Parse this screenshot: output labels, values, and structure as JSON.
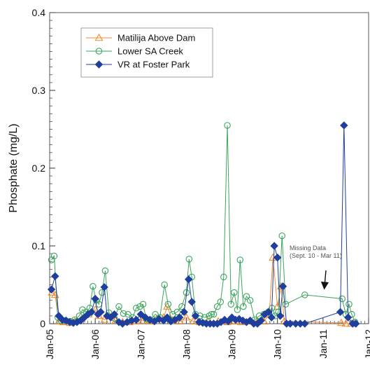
{
  "chart_data": {
    "type": "line",
    "title": "",
    "xlabel": "",
    "ylabel": "Phosphate (mg/L)",
    "ylim": [
      0,
      0.4
    ],
    "y_ticks": [
      "0",
      "0.1",
      "0.2",
      "0.3",
      "0.4"
    ],
    "x_range": [
      2005.0,
      2012.0
    ],
    "x_ticks": [
      "Jan-05",
      "Jan-06",
      "Jan-07",
      "Jan-08",
      "Jan-09",
      "Jan-10",
      "Jan-11",
      "Jan-12"
    ],
    "grid": false,
    "legend_position": "top-left",
    "annotation": {
      "lines": [
        "Missing Data",
        "(Sept. 10 - Mar 11)"
      ],
      "arrow_to": [
        2011.02,
        0.045
      ]
    },
    "series": [
      {
        "name": "Matilija Above Dam",
        "color": "#f28a30",
        "marker": "triangle",
        "points": [
          [
            2005.05,
            0.04
          ],
          [
            2005.12,
            0.037
          ],
          [
            2005.2,
            0.003
          ],
          [
            2005.3,
            0.002
          ],
          [
            2005.45,
            0.001
          ],
          [
            2005.55,
            0.003
          ],
          [
            2005.7,
            0.006
          ],
          [
            2005.85,
            0.012
          ],
          [
            2006.0,
            0.018
          ],
          [
            2006.08,
            0.01
          ],
          [
            2006.2,
            0.005
          ],
          [
            2006.3,
            0.01
          ],
          [
            2006.45,
            0.004
          ],
          [
            2006.6,
            0.002
          ],
          [
            2006.75,
            0.002
          ],
          [
            2006.9,
            0.003
          ],
          [
            2007.05,
            0.004
          ],
          [
            2007.2,
            0.003
          ],
          [
            2007.35,
            0.006
          ],
          [
            2007.5,
            0.008
          ],
          [
            2007.58,
            0.022
          ],
          [
            2007.7,
            0.004
          ],
          [
            2007.85,
            0.003
          ],
          [
            2008.0,
            0.008
          ],
          [
            2008.15,
            0.003
          ],
          [
            2008.3,
            0.002
          ],
          [
            2008.5,
            0.003
          ],
          [
            2008.7,
            0.003
          ],
          [
            2008.9,
            0.002
          ],
          [
            2009.05,
            0.003
          ],
          [
            2009.2,
            0.002
          ],
          [
            2009.4,
            0.003
          ],
          [
            2009.55,
            0.002
          ],
          [
            2009.7,
            0.003
          ],
          [
            2009.82,
            0.012
          ],
          [
            2009.9,
            0.085
          ],
          [
            2010.0,
            0.022
          ],
          [
            2010.08,
            0.048
          ],
          [
            2010.15,
            0.003
          ],
          [
            2011.4,
            0.001
          ],
          [
            2011.5,
            0.0
          ],
          [
            2011.62,
            0.0
          ]
        ]
      },
      {
        "name": "Lower SA Creek",
        "color": "#3aa65c",
        "marker": "circle",
        "points": [
          [
            2005.04,
            0.082
          ],
          [
            2005.1,
            0.087
          ],
          [
            2005.18,
            0.008
          ],
          [
            2005.25,
            0.004
          ],
          [
            2005.35,
            0.004
          ],
          [
            2005.45,
            0.003
          ],
          [
            2005.55,
            0.005
          ],
          [
            2005.65,
            0.01
          ],
          [
            2005.72,
            0.018
          ],
          [
            2005.8,
            0.015
          ],
          [
            2005.88,
            0.02
          ],
          [
            2005.95,
            0.048
          ],
          [
            2006.02,
            0.03
          ],
          [
            2006.08,
            0.025
          ],
          [
            2006.15,
            0.04
          ],
          [
            2006.22,
            0.068
          ],
          [
            2006.3,
            0.014
          ],
          [
            2006.42,
            0.007
          ],
          [
            2006.52,
            0.022
          ],
          [
            2006.62,
            0.013
          ],
          [
            2006.72,
            0.012
          ],
          [
            2006.82,
            0.008
          ],
          [
            2006.9,
            0.02
          ],
          [
            2006.98,
            0.022
          ],
          [
            2007.05,
            0.025
          ],
          [
            2007.12,
            0.006
          ],
          [
            2007.22,
            0.005
          ],
          [
            2007.32,
            0.012
          ],
          [
            2007.42,
            0.008
          ],
          [
            2007.52,
            0.05
          ],
          [
            2007.6,
            0.025
          ],
          [
            2007.7,
            0.012
          ],
          [
            2007.8,
            0.015
          ],
          [
            2007.9,
            0.022
          ],
          [
            2008.0,
            0.04
          ],
          [
            2008.06,
            0.083
          ],
          [
            2008.12,
            0.06
          ],
          [
            2008.2,
            0.012
          ],
          [
            2008.3,
            0.01
          ],
          [
            2008.4,
            0.008
          ],
          [
            2008.5,
            0.01
          ],
          [
            2008.55,
            0.012
          ],
          [
            2008.6,
            0.012
          ],
          [
            2008.68,
            0.022
          ],
          [
            2008.75,
            0.028
          ],
          [
            2008.82,
            0.06
          ],
          [
            2008.9,
            0.255
          ],
          [
            2008.98,
            0.025
          ],
          [
            2009.05,
            0.04
          ],
          [
            2009.12,
            0.018
          ],
          [
            2009.18,
            0.082
          ],
          [
            2009.25,
            0.022
          ],
          [
            2009.32,
            0.035
          ],
          [
            2009.4,
            0.03
          ],
          [
            2009.5,
            0.005
          ],
          [
            2009.6,
            0.01
          ],
          [
            2009.7,
            0.012
          ],
          [
            2009.8,
            0.015
          ],
          [
            2009.88,
            0.02
          ],
          [
            2009.95,
            0.01
          ],
          [
            2010.02,
            0.015
          ],
          [
            2010.1,
            0.113
          ],
          [
            2010.18,
            0.025
          ],
          [
            2010.6,
            0.037
          ],
          [
            2011.42,
            0.032
          ],
          [
            2011.5,
            0.012
          ],
          [
            2011.57,
            0.025
          ],
          [
            2011.63,
            0.012
          ],
          [
            2011.7,
            0.002
          ]
        ]
      },
      {
        "name": "VR at Foster Park",
        "color": "#1f3f9e",
        "marker": "diamond",
        "points": [
          [
            2005.04,
            0.044
          ],
          [
            2005.12,
            0.061
          ],
          [
            2005.2,
            0.01
          ],
          [
            2005.28,
            0.005
          ],
          [
            2005.36,
            0.004
          ],
          [
            2005.44,
            0.002
          ],
          [
            2005.52,
            0.001
          ],
          [
            2005.6,
            0.002
          ],
          [
            2005.68,
            0.004
          ],
          [
            2005.76,
            0.008
          ],
          [
            2005.84,
            0.012
          ],
          [
            2005.92,
            0.015
          ],
          [
            2006.0,
            0.032
          ],
          [
            2006.06,
            0.012
          ],
          [
            2006.12,
            0.015
          ],
          [
            2006.2,
            0.047
          ],
          [
            2006.26,
            0.01
          ],
          [
            2006.34,
            0.008
          ],
          [
            2006.42,
            0.012
          ],
          [
            2006.52,
            0.002
          ],
          [
            2006.6,
            0.0
          ],
          [
            2006.7,
            0.002
          ],
          [
            2006.8,
            0.004
          ],
          [
            2006.9,
            0.005
          ],
          [
            2007.0,
            0.012
          ],
          [
            2007.1,
            0.008
          ],
          [
            2007.2,
            0.005
          ],
          [
            2007.3,
            0.003
          ],
          [
            2007.4,
            0.006
          ],
          [
            2007.5,
            0.004
          ],
          [
            2007.58,
            0.008
          ],
          [
            2007.66,
            0.003
          ],
          [
            2007.75,
            0.005
          ],
          [
            2007.85,
            0.008
          ],
          [
            2007.95,
            0.015
          ],
          [
            2008.05,
            0.057
          ],
          [
            2008.12,
            0.028
          ],
          [
            2008.2,
            0.01
          ],
          [
            2008.28,
            0.002
          ],
          [
            2008.36,
            0.001
          ],
          [
            2008.44,
            0.0
          ],
          [
            2008.52,
            0.0
          ],
          [
            2008.6,
            0.0
          ],
          [
            2008.68,
            0.0
          ],
          [
            2008.76,
            0.002
          ],
          [
            2008.84,
            0.005
          ],
          [
            2008.92,
            0.003
          ],
          [
            2009.0,
            0.008
          ],
          [
            2009.08,
            0.005
          ],
          [
            2009.16,
            0.006
          ],
          [
            2009.24,
            0.004
          ],
          [
            2009.32,
            0.002
          ],
          [
            2009.4,
            0.004
          ],
          [
            2009.48,
            0.0
          ],
          [
            2009.56,
            0.0
          ],
          [
            2009.64,
            0.004
          ],
          [
            2009.72,
            0.012
          ],
          [
            2009.8,
            0.015
          ],
          [
            2009.87,
            0.008
          ],
          [
            2009.93,
            0.1
          ],
          [
            2010.0,
            0.085
          ],
          [
            2010.06,
            0.01
          ],
          [
            2010.12,
            0.048
          ],
          [
            2010.2,
            0.0
          ],
          [
            2010.28,
            0.0
          ],
          [
            2010.4,
            0.0
          ],
          [
            2010.5,
            0.0
          ],
          [
            2010.6,
            0.0
          ],
          [
            2011.38,
            0.015
          ],
          [
            2011.46,
            0.255
          ],
          [
            2011.55,
            0.008
          ],
          [
            2011.65,
            0.0
          ],
          [
            2011.72,
            0.0
          ]
        ]
      }
    ]
  }
}
